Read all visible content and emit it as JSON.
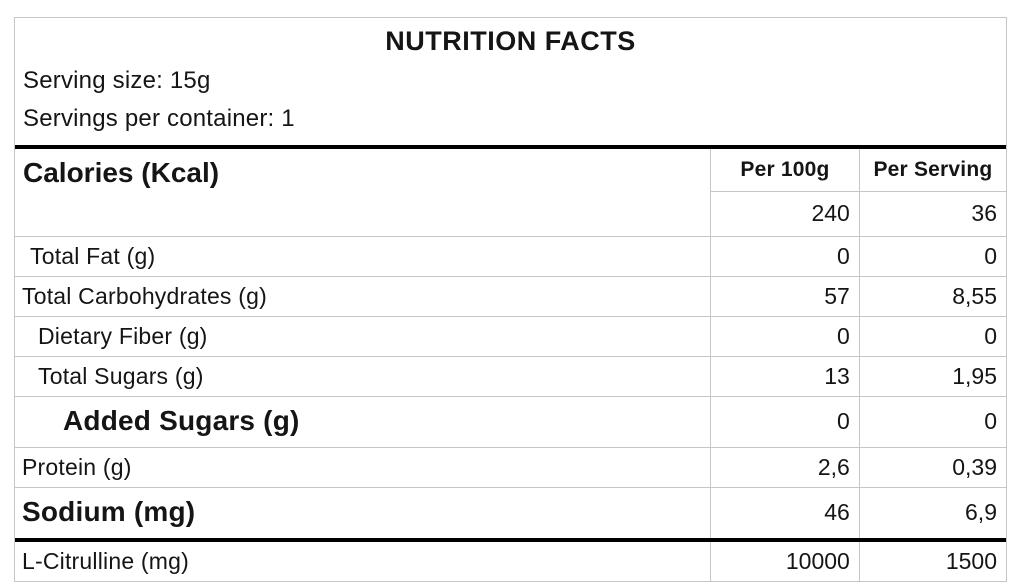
{
  "header": {
    "title": "NUTRITION FACTS",
    "serving_size": "Serving size: 15g",
    "servings_per_container": "Servings per container: 1"
  },
  "table": {
    "calories_label": "Calories (Kcal)",
    "column_headers": [
      "Per 100g",
      "Per Serving"
    ],
    "calories_values": {
      "per_100g": "240",
      "per_serving": "36"
    },
    "rows": [
      {
        "label": "Total Fat (g)",
        "per_100g": "0",
        "per_serving": "0",
        "indent": 1,
        "bold": false,
        "thick_top": false
      },
      {
        "label": "Total Carbohydrates (g)",
        "per_100g": "57",
        "per_serving": "8,55",
        "indent": 0,
        "bold": false,
        "thick_top": false
      },
      {
        "label": "Dietary Fiber (g)",
        "per_100g": "0",
        "per_serving": "0",
        "indent": 2,
        "bold": false,
        "thick_top": false
      },
      {
        "label": "Total Sugars (g)",
        "per_100g": "13",
        "per_serving": "1,95",
        "indent": 2,
        "bold": false,
        "thick_top": false
      },
      {
        "label": "Added Sugars (g)",
        "per_100g": "0",
        "per_serving": "0",
        "indent": 3,
        "bold": true,
        "thick_top": false
      },
      {
        "label": "Protein (g)",
        "per_100g": "2,6",
        "per_serving": "0,39",
        "indent": 0,
        "bold": false,
        "thick_top": false
      },
      {
        "label": "Sodium (mg)",
        "per_100g": "46",
        "per_serving": "6,9",
        "indent": 0,
        "bold": true,
        "thick_top": false
      },
      {
        "label": "L-Citrulline (mg)",
        "per_100g": "10000",
        "per_serving": "1500",
        "indent": 0,
        "bold": false,
        "thick_top": true
      }
    ]
  },
  "colors": {
    "text": "#151515",
    "cell_border": "#c6c6c6",
    "thick_rule": "#000000",
    "background": "#ffffff"
  }
}
